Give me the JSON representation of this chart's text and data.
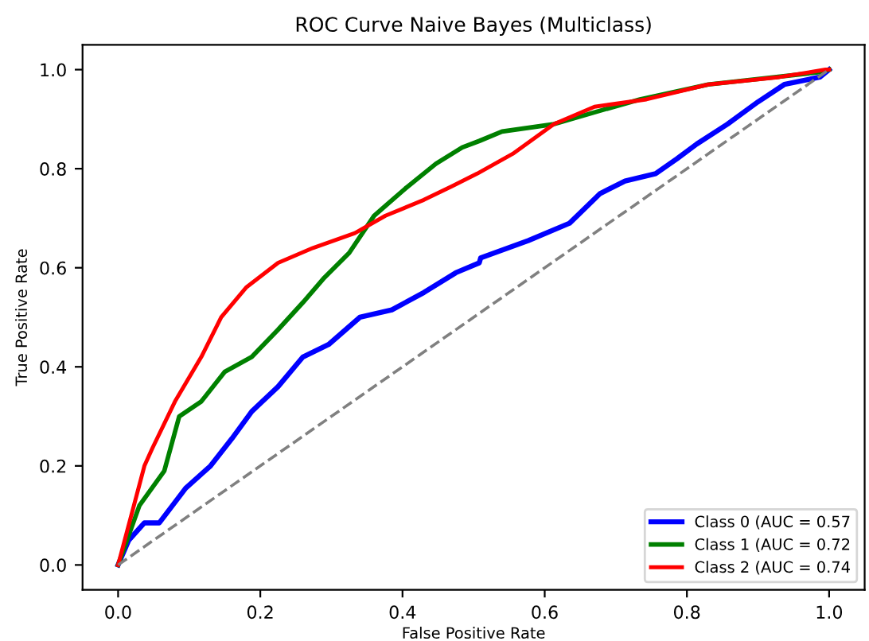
{
  "chart_data": {
    "type": "line",
    "title": "ROC Curve Naive Bayes (Multiclass)",
    "xlabel": "False Positive Rate",
    "ylabel": "True Positive Rate",
    "xlim": [
      -0.05,
      1.05
    ],
    "ylim": [
      -0.05,
      1.05
    ],
    "xticks": [
      {
        "value": 0,
        "label": "0.0"
      },
      0.2,
      0.4,
      0.6,
      0.8,
      {
        "value": 1,
        "label": "1.0"
      }
    ],
    "yticks": [
      {
        "value": 0,
        "label": "0.0"
      },
      0.2,
      0.4,
      0.6,
      0.8,
      {
        "value": 1,
        "label": "1.0"
      }
    ],
    "grid": false,
    "legend": "bottom right",
    "marker": "none",
    "line_style": "solid",
    "series": [
      {
        "name": "Class 0 (AUC = 0.57",
        "color": "#0000ff",
        "x": [
          0,
          0.015,
          0.037,
          0.058,
          0.095,
          0.13,
          0.16,
          0.188,
          0.225,
          0.26,
          0.296,
          0.34,
          0.385,
          0.43,
          0.475,
          0.508,
          0.51,
          0.577,
          0.635,
          0.678,
          0.713,
          0.756,
          0.786,
          0.814,
          0.857,
          0.9,
          0.937,
          0.987,
          1
        ],
        "values": [
          0,
          0.05,
          0.085,
          0.085,
          0.155,
          0.2,
          0.255,
          0.31,
          0.36,
          0.42,
          0.445,
          0.5,
          0.515,
          0.55,
          0.59,
          0.61,
          0.62,
          0.655,
          0.69,
          0.75,
          0.775,
          0.79,
          0.82,
          0.85,
          0.89,
          0.935,
          0.97,
          0.985,
          1
        ]
      },
      {
        "name": "Class 1 (AUC = 0.72",
        "color": "#008000",
        "x": [
          0,
          0.03,
          0.065,
          0.086,
          0.117,
          0.15,
          0.188,
          0.225,
          0.26,
          0.29,
          0.325,
          0.36,
          0.404,
          0.447,
          0.484,
          0.508,
          0.54,
          0.613,
          0.685,
          0.734,
          0.83,
          0.987,
          1
        ],
        "values": [
          0,
          0.12,
          0.19,
          0.3,
          0.33,
          0.39,
          0.42,
          0.475,
          0.53,
          0.58,
          0.63,
          0.705,
          0.76,
          0.81,
          0.843,
          0.856,
          0.875,
          0.89,
          0.92,
          0.94,
          0.97,
          0.995,
          1
        ]
      },
      {
        "name": "Class 2 (AUC = 0.74",
        "color": "#ff0000",
        "x": [
          0,
          0.037,
          0.048,
          0.08,
          0.117,
          0.145,
          0.18,
          0.225,
          0.274,
          0.333,
          0.376,
          0.43,
          0.47,
          0.505,
          0.555,
          0.613,
          0.67,
          0.743,
          0.83,
          0.93,
          0.995,
          1
        ],
        "values": [
          0,
          0.2,
          0.235,
          0.33,
          0.42,
          0.5,
          0.56,
          0.61,
          0.64,
          0.67,
          0.705,
          0.737,
          0.765,
          0.79,
          0.83,
          0.89,
          0.925,
          0.94,
          0.97,
          0.985,
          1,
          1
        ]
      },
      {
        "color": "#808080",
        "line_style": "dashed",
        "x": [
          0,
          1
        ],
        "values": [
          0,
          1
        ]
      }
    ]
  }
}
